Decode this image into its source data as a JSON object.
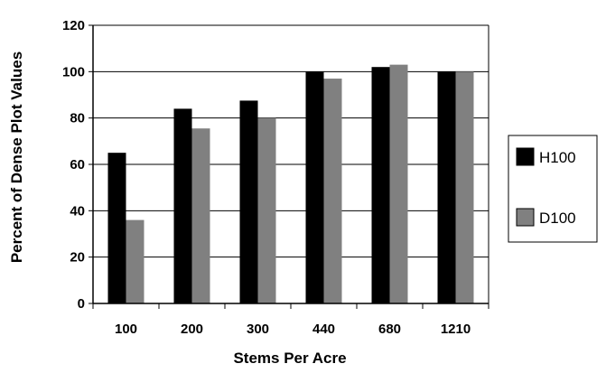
{
  "chart_data": {
    "type": "bar",
    "title": "",
    "xlabel": "Stems Per Acre",
    "ylabel": "Percent of Dense Plot  Values",
    "categories": [
      "100",
      "200",
      "300",
      "440",
      "680",
      "1210"
    ],
    "series": [
      {
        "name": "H100",
        "values": [
          65,
          84,
          87.5,
          100,
          102,
          100
        ],
        "color": "#000000"
      },
      {
        "name": "D100",
        "values": [
          36,
          75.5,
          80,
          97,
          103,
          100
        ],
        "color": "#808080"
      }
    ],
    "ylim": [
      0,
      120
    ],
    "yticks": [
      "0",
      "20",
      "40",
      "60",
      "80",
      "100",
      "120"
    ],
    "grid": true,
    "legend_position": "right"
  }
}
